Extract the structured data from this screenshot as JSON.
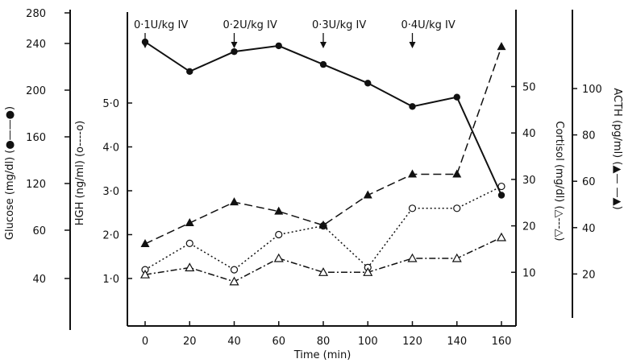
{
  "chart_data": {
    "type": "line",
    "xlabel": "Time (min)",
    "x_ticks": [
      "0",
      "20",
      "40",
      "60",
      "80",
      "100",
      "120",
      "140",
      "160"
    ],
    "x": [
      0,
      20,
      40,
      60,
      80,
      100,
      120,
      140,
      160
    ],
    "xlim": [
      0,
      160
    ],
    "axes": {
      "glucose": {
        "label": "Glucose (mg/dl) (●——●)",
        "ticks": [
          "40",
          "60",
          "120",
          "160",
          "200",
          "240",
          "280"
        ],
        "tick_values": [
          40,
          80,
          120,
          160,
          200,
          240,
          280
        ],
        "ylim": [
          0,
          280
        ]
      },
      "hgh": {
        "label": "HGH (ng/ml) (o----o)",
        "ticks": [
          "1·0",
          "2·0",
          "3·0",
          "4·0",
          "5·0"
        ],
        "tick_values": [
          1.0,
          2.0,
          3.0,
          4.0,
          5.0
        ],
        "ylim": [
          0,
          6.6
        ]
      },
      "cortisol": {
        "label": "Cortisol (mg/dl) (△---△)",
        "ticks": [
          "10",
          "20",
          "30",
          "40",
          "50"
        ],
        "tick_values": [
          10,
          20,
          30,
          40,
          50
        ],
        "ylim": [
          0,
          66
        ]
      },
      "acth": {
        "label": "ACTH (pg/ml) (▲— —▲)",
        "ticks": [
          "20",
          "40",
          "60",
          "80",
          "100"
        ],
        "tick_values": [
          20,
          40,
          60,
          80,
          100
        ],
        "ylim": [
          0,
          132
        ]
      }
    },
    "annotations": [
      {
        "text": "0·1U/kg IV",
        "x": 0
      },
      {
        "text": "0·2U/kg IV",
        "x": 40
      },
      {
        "text": "0·3U/kg IV",
        "x": 80
      },
      {
        "text": "0·4U/kg IV",
        "x": 120
      }
    ],
    "series": [
      {
        "axis": "glucose",
        "marker": "filled-circle",
        "dash": "solid",
        "values": [
          242,
          216,
          233,
          238,
          222,
          206,
          186,
          194,
          110
        ]
      },
      {
        "axis": "hgh",
        "marker": "open-circle",
        "dash": "dotted",
        "values": [
          1.2,
          1.8,
          1.2,
          2.0,
          2.2,
          1.25,
          2.6,
          2.6,
          3.1
        ]
      },
      {
        "axis": "cortisol",
        "marker": "open-triangle",
        "dash": "dash-dot",
        "values": [
          9.5,
          11,
          8,
          13,
          10,
          10,
          13,
          13,
          17.5
        ]
      },
      {
        "axis": "acth",
        "marker": "filled-triangle",
        "dash": "dashed",
        "values": [
          33,
          42,
          51,
          47,
          41,
          54,
          63,
          63,
          118
        ]
      }
    ]
  }
}
